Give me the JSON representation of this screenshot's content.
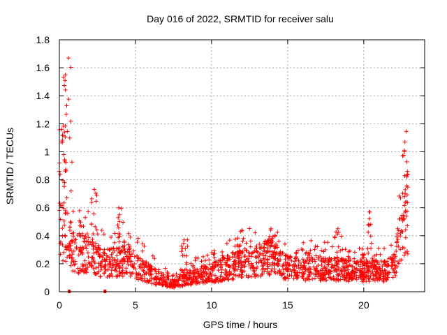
{
  "chart_data": {
    "type": "scatter",
    "title": "Day 016 of 2022, SRMTID for receiver salu",
    "xlabel": "GPS time / hours",
    "ylabel": "SRMTID / TECUs",
    "xlim": [
      0,
      24
    ],
    "ylim": [
      0,
      1.8
    ],
    "x_ticks": [
      0,
      5,
      10,
      15,
      20
    ],
    "x_tick_labels": [
      "0",
      "5",
      "10",
      "15",
      "20"
    ],
    "y_ticks": [
      0,
      0.2,
      0.4,
      0.6,
      0.8,
      1,
      1.2,
      1.4,
      1.6,
      1.8
    ],
    "y_tick_labels": [
      "0",
      "0.2",
      "0.4",
      "0.6",
      "0.8",
      "1",
      "1.2",
      "1.4",
      "1.6",
      "1.8"
    ],
    "grid": true,
    "marker": "+",
    "series_color": "#ff0000",
    "x_extent_hours": [
      0,
      22.9
    ],
    "outage_markers_x": [
      0.65,
      3.0
    ],
    "baseline_profile": {
      "x": [
        0,
        0.5,
        1.0,
        2.0,
        3.0,
        4.0,
        5.0,
        6.0,
        7.0,
        7.5,
        8.0,
        9.0,
        10.0,
        11.0,
        12.0,
        13.0,
        13.8,
        14.5,
        15.0,
        16.0,
        17.0,
        18.0,
        19.0,
        20.0,
        21.0,
        21.5,
        22.0,
        22.4,
        22.9
      ],
      "y": [
        0.55,
        0.4,
        0.3,
        0.27,
        0.2,
        0.25,
        0.2,
        0.13,
        0.08,
        0.06,
        0.09,
        0.12,
        0.14,
        0.18,
        0.22,
        0.23,
        0.26,
        0.22,
        0.18,
        0.17,
        0.18,
        0.17,
        0.16,
        0.15,
        0.16,
        0.15,
        0.2,
        0.4,
        0.6
      ]
    },
    "peaks": [
      {
        "x": 0.6,
        "y": 1.67
      },
      {
        "x": 0.4,
        "y": 1.55
      },
      {
        "x": 0.15,
        "y": 1.16
      },
      {
        "x": 2.3,
        "y": 0.73
      },
      {
        "x": 3.9,
        "y": 0.6
      },
      {
        "x": 8.2,
        "y": 0.37
      },
      {
        "x": 11.9,
        "y": 0.43
      },
      {
        "x": 13.9,
        "y": 0.45
      },
      {
        "x": 18.3,
        "y": 0.45
      },
      {
        "x": 20.4,
        "y": 0.57
      },
      {
        "x": 22.7,
        "y": 1.07
      }
    ]
  }
}
